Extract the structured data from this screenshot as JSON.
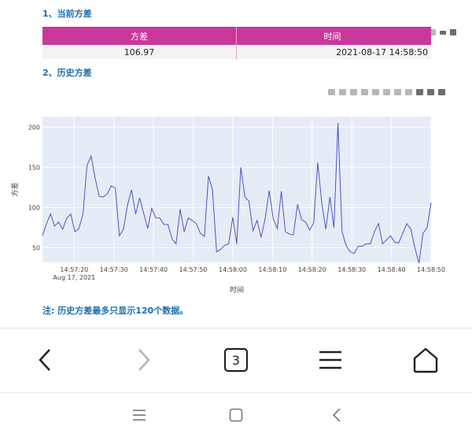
{
  "section1": {
    "title": "1、当前方差"
  },
  "section2": {
    "title": "2、历史方差"
  },
  "table": {
    "headers": [
      "方差",
      "时间"
    ],
    "row": {
      "variance": "106.97",
      "time": "2021-08-17 14:58:50"
    },
    "header_color": "#c9379b"
  },
  "toolbar_icons": [
    "camera-icon",
    "zoom-icon",
    "pan-icon",
    "zoom-in-icon",
    "zoom-out-icon",
    "autoscale-icon",
    "reset-axes-icon",
    "spike-lines-icon",
    "hover-closest-icon",
    "hover-compare-icon",
    "plotly-logo-icon"
  ],
  "chart_data": {
    "type": "line",
    "title": "",
    "xlabel": "时间",
    "ylabel": "方差",
    "x_start": "14:57:12",
    "x_end": "14:58:50",
    "x_ticks": [
      "14:57:20",
      "14:57:30",
      "14:57:40",
      "14:57:50",
      "14:58:00",
      "14:58:10",
      "14:58:20",
      "14:58:30",
      "14:58:40",
      "14:58:50"
    ],
    "x_date_label": "Aug 17, 2021",
    "y_ticks": [
      50,
      100,
      150,
      200
    ],
    "ylim": [
      32,
      213
    ],
    "grid": true,
    "series": [
      {
        "name": "",
        "color": "#4b55c6",
        "values": [
          65,
          80,
          92,
          77,
          82,
          73,
          87,
          92,
          70,
          74,
          92,
          152,
          164,
          137,
          114,
          113,
          117,
          127,
          124,
          65,
          73,
          103,
          122,
          92,
          112,
          93,
          74,
          99,
          87,
          87,
          79,
          79,
          61,
          55,
          98,
          70,
          87,
          84,
          80,
          68,
          64,
          139,
          122,
          45,
          48,
          53,
          55,
          88,
          55,
          150,
          113,
          108,
          71,
          84,
          63,
          86,
          121,
          86,
          74,
          120,
          70,
          67,
          66,
          104,
          85,
          82,
          72,
          81,
          156,
          105,
          73,
          113,
          75,
          205,
          70,
          53,
          45,
          43,
          52,
          52,
          55,
          55,
          70,
          80,
          55,
          60,
          65,
          57,
          56,
          68,
          80,
          73,
          50,
          31,
          68,
          75,
          106
        ]
      }
    ]
  },
  "note": {
    "text": "注: 历史方差最多只显示120个数据。"
  },
  "browser_nav": {
    "tab_count": "3",
    "icons": [
      "back-icon",
      "forward-icon",
      "tabs-icon",
      "menu-icon",
      "home-icon"
    ]
  },
  "system_nav": {
    "icons": [
      "recents-icon",
      "home-square-icon",
      "system-back-icon"
    ]
  }
}
